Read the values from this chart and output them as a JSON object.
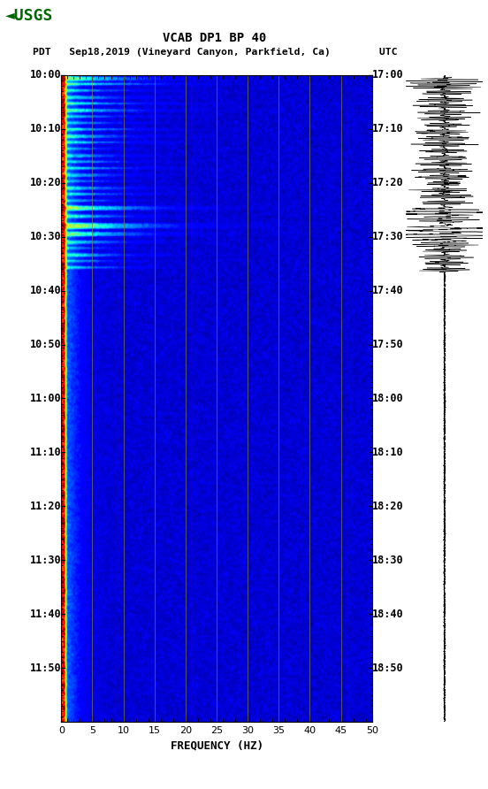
{
  "title_line1": "VCAB DP1 BP 40",
  "title_line2": "PDT   Sep18,2019 (Vineyard Canyon, Parkfield, Ca)        UTC",
  "xlabel": "FREQUENCY (HZ)",
  "freq_min": 0,
  "freq_max": 50,
  "freq_ticks": [
    0,
    5,
    10,
    15,
    20,
    25,
    30,
    35,
    40,
    45,
    50
  ],
  "time_labels_left": [
    "10:00",
    "10:10",
    "10:20",
    "10:30",
    "10:40",
    "10:50",
    "11:00",
    "11:10",
    "11:20",
    "11:30",
    "11:40",
    "11:50"
  ],
  "time_labels_right": [
    "17:00",
    "17:10",
    "17:20",
    "17:30",
    "17:40",
    "17:50",
    "18:00",
    "18:10",
    "18:20",
    "18:30",
    "18:40",
    "18:50"
  ],
  "n_time_rows": 600,
  "n_freq_cols": 500,
  "bg_color": "#ffffff",
  "colormap": "jet",
  "vertical_lines_freq": [
    5,
    10,
    15,
    20,
    25,
    30,
    35,
    40,
    45
  ],
  "vline_color": "#808040",
  "spectrogram_vmin": 0.0,
  "spectrogram_vmax": 1.0,
  "usgs_color": "#006600"
}
